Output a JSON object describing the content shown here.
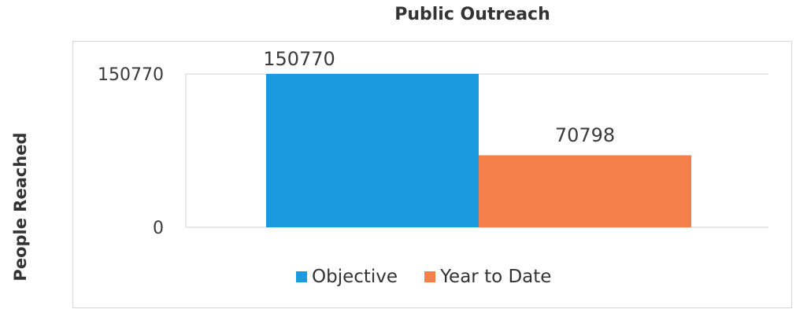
{
  "chart_data": {
    "type": "bar",
    "title": "Public Outreach",
    "ylabel": "People Reached",
    "xlabel": "",
    "categories": [
      "Objective",
      "Year to Date"
    ],
    "values": [
      150770,
      70798
    ],
    "colors": [
      "#1b9ae0",
      "#f47f4a"
    ],
    "yticks": [
      "0",
      "150770"
    ],
    "ylim": [
      0,
      150770
    ],
    "grid": true,
    "legend_position": "bottom",
    "legend": [
      {
        "label": "Objective",
        "color": "#1b9ae0"
      },
      {
        "label": "Year to Date",
        "color": "#f47f4a"
      }
    ]
  }
}
